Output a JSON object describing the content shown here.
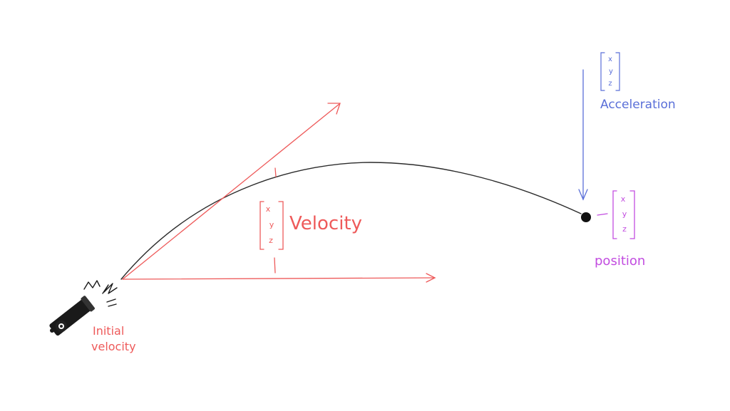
{
  "labels": {
    "velocity": "Velocity",
    "acceleration": "Acceleration",
    "position": "position",
    "initial_velocity_line1": "Initial",
    "initial_velocity_line2": "velocity"
  },
  "vector_components": [
    "x",
    "y",
    "z"
  ],
  "colors": {
    "trajectory": "#2b2b2b",
    "velocity": "#ee5a5a",
    "acceleration": "#5a6fd8",
    "position": "#c24de0",
    "cannon": "#1a1a1a"
  }
}
